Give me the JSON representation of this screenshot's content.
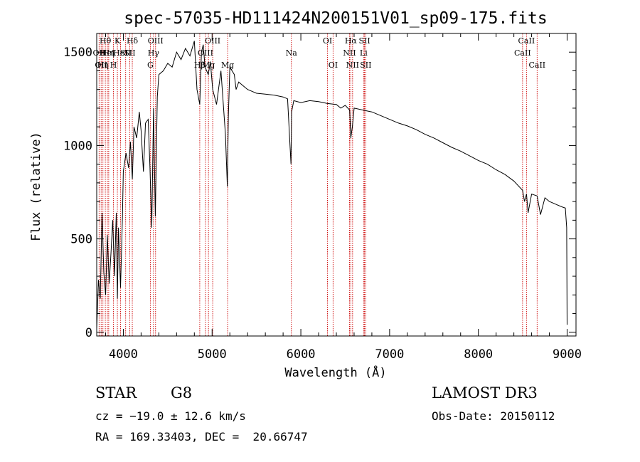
{
  "chart_data": {
    "type": "line",
    "title": "spec-57035-HD111424N200151V01_sp09-175.fits",
    "xlabel": "Wavelength (Å)",
    "ylabel": "Flux (relative)",
    "xlim": [
      3700,
      9100
    ],
    "ylim": [
      -20,
      1600
    ],
    "xticks": [
      4000,
      5000,
      6000,
      7000,
      8000,
      9000
    ],
    "yticks": [
      0,
      500,
      1000,
      1500
    ],
    "line_color": "#000000",
    "marker_color": "#cc0000",
    "series": [
      {
        "name": "spectrum",
        "x": [
          3700,
          3720,
          3740,
          3760,
          3780,
          3800,
          3820,
          3840,
          3860,
          3880,
          3900,
          3920,
          3933,
          3945,
          3968,
          3990,
          4000,
          4030,
          4060,
          4080,
          4101,
          4120,
          4150,
          4180,
          4200,
          4226,
          4250,
          4280,
          4300,
          4320,
          4340,
          4360,
          4383,
          4400,
          4450,
          4500,
          4550,
          4600,
          4650,
          4700,
          4750,
          4800,
          4830,
          4861,
          4880,
          4900,
          4920,
          4957,
          4980,
          5007,
          5050,
          5100,
          5150,
          5172,
          5183,
          5200,
          5250,
          5270,
          5300,
          5350,
          5400,
          5450,
          5500,
          5600,
          5700,
          5800,
          5850,
          5889,
          5896,
          5920,
          6000,
          6100,
          6200,
          6300,
          6400,
          6450,
          6500,
          6550,
          6563,
          6580,
          6600,
          6700,
          6800,
          6900,
          7000,
          7100,
          7200,
          7300,
          7400,
          7500,
          7600,
          7700,
          7800,
          7900,
          8000,
          8100,
          8200,
          8300,
          8400,
          8498,
          8520,
          8542,
          8560,
          8600,
          8662,
          8700,
          8750,
          8800,
          8850,
          8900,
          8950,
          8980,
          8995,
          9000
        ],
        "values": [
          20,
          280,
          180,
          640,
          320,
          200,
          520,
          260,
          420,
          600,
          300,
          640,
          180,
          560,
          240,
          620,
          860,
          960,
          880,
          1020,
          820,
          1100,
          1040,
          1180,
          1080,
          860,
          1120,
          1140,
          880,
          560,
          1200,
          620,
          1260,
          1380,
          1400,
          1440,
          1420,
          1500,
          1460,
          1520,
          1480,
          1560,
          1300,
          1220,
          1500,
          1540,
          1420,
          1380,
          1450,
          1300,
          1220,
          1400,
          1060,
          780,
          1150,
          1420,
          1380,
          1300,
          1340,
          1320,
          1300,
          1290,
          1280,
          1275,
          1270,
          1260,
          1250,
          900,
          1180,
          1240,
          1230,
          1240,
          1235,
          1225,
          1220,
          1200,
          1215,
          1190,
          1040,
          1100,
          1200,
          1190,
          1180,
          1160,
          1140,
          1120,
          1105,
          1085,
          1060,
          1040,
          1015,
          990,
          970,
          945,
          920,
          900,
          870,
          845,
          810,
          760,
          700,
          740,
          640,
          740,
          730,
          630,
          720,
          700,
          690,
          680,
          670,
          665,
          560,
          40
        ]
      }
    ],
    "lines": [
      {
        "wl": 3727,
        "row": 1,
        "label": "OII"
      },
      {
        "wl": 3750,
        "row": 2,
        "label": "OII"
      },
      {
        "wl": 3770,
        "row": 2,
        "label": "Hη"
      },
      {
        "wl": 3797,
        "row": 0,
        "label": "Hθ"
      },
      {
        "wl": 3820,
        "row": 1,
        "label": "HeI"
      },
      {
        "wl": 3835,
        "row": 1,
        "label": "Hη"
      },
      {
        "wl": 3889,
        "row": 2,
        "label": "H"
      },
      {
        "wl": 3933,
        "row": 0,
        "label": "K"
      },
      {
        "wl": 3968,
        "row": 1,
        "label": "HeI"
      },
      {
        "wl": 4026,
        "row": 1,
        "label": "SII"
      },
      {
        "wl": 4101,
        "row": 0,
        "label": "Hδ"
      },
      {
        "wl": 4072,
        "row": 1,
        "label": "SII"
      },
      {
        "wl": 4304,
        "row": 2,
        "label": "G"
      },
      {
        "wl": 4340,
        "row": 1,
        "label": "Hγ"
      },
      {
        "wl": 4363,
        "row": 0,
        "label": "OIII"
      },
      {
        "wl": 4861,
        "row": 2,
        "label": "Hβ"
      },
      {
        "wl": 4925,
        "row": 1,
        "label": "OIII"
      },
      {
        "wl": 4959,
        "row": 2,
        "label": "Mg"
      },
      {
        "wl": 5007,
        "row": 0,
        "label": "OIII"
      },
      {
        "wl": 5175,
        "row": 2,
        "label": "Mg"
      },
      {
        "wl": 5893,
        "row": 1,
        "label": "Na"
      },
      {
        "wl": 6300,
        "row": 0,
        "label": "OI"
      },
      {
        "wl": 6363,
        "row": 2,
        "label": "OI"
      },
      {
        "wl": 6548,
        "row": 1,
        "label": "NII"
      },
      {
        "wl": 6563,
        "row": 0,
        "label": "Hα"
      },
      {
        "wl": 6583,
        "row": 2,
        "label": "NII"
      },
      {
        "wl": 6707,
        "row": 1,
        "label": "Li"
      },
      {
        "wl": 6717,
        "row": 0,
        "label": "SII"
      },
      {
        "wl": 6731,
        "row": 2,
        "label": "SII"
      },
      {
        "wl": 8498,
        "row": 1,
        "label": "CaII"
      },
      {
        "wl": 8542,
        "row": 0,
        "label": "CaII"
      },
      {
        "wl": 8662,
        "row": 2,
        "label": "CaII"
      }
    ]
  },
  "info": {
    "class": "STAR",
    "subclass": "G8",
    "cz": "cz = −19.0 ± 12.6 km/s",
    "radec": "RA = 169.33403, DEC =  20.66747",
    "survey": "LAMOST DR3",
    "obsdate": "Obs-Date: 20150112"
  }
}
